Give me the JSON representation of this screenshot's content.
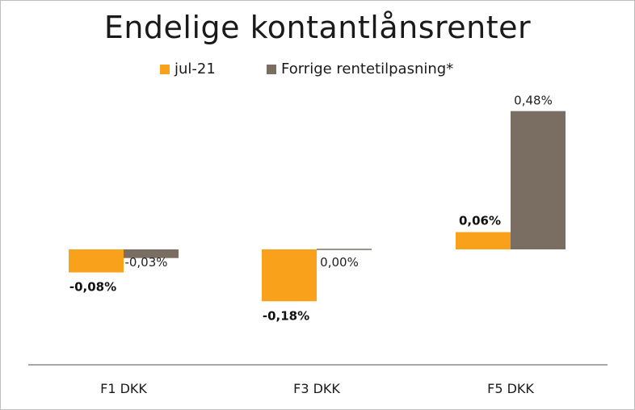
{
  "chart_data": {
    "type": "bar",
    "title": "Endelige kontantlånsrenter",
    "categories": [
      "F1 DKK",
      "F3 DKK",
      "F5 DKK"
    ],
    "series": [
      {
        "name": "jul-21",
        "color": "#f9a11b",
        "values": [
          -0.08,
          -0.18,
          0.06
        ],
        "labels": [
          "-0,08%",
          "-0,18%",
          "0,06%"
        ]
      },
      {
        "name": "Forrige rentetilpasning*",
        "color": "#7a6e63",
        "values": [
          -0.03,
          0.0,
          0.48
        ],
        "labels": [
          "-0,03%",
          "0,00%",
          "0,48%"
        ]
      }
    ],
    "legend_position": "top",
    "grid": false
  }
}
